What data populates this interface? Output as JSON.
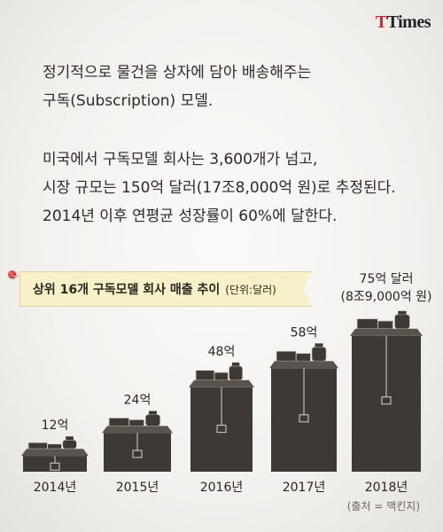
{
  "logo": {
    "t1": "T",
    "t2": "Times"
  },
  "intro": {
    "line1": "정기적으로 물건을 상자에 담아 배송해주는",
    "line2": "구독(Subscription) 모델."
  },
  "body_text": {
    "line1": "미국에서 구독모델 회사는 3,600개가 넘고,",
    "line2": "시장 규모는 150억 달러(17조8,000억 원)로 추정된다.",
    "line3": "2014년 이후 연평균 성장률이 60%에 달한다."
  },
  "banner": {
    "title": "상위 16개 구독모델 회사 매출 추이",
    "unit": "(단위:달러)"
  },
  "source": "(출처 = 맥킨지)",
  "colors": {
    "box_front": "#3f3935",
    "box_lid": "#5a534e",
    "box_line": "#d8d2cc",
    "label": "#2a2624",
    "brand_red": "#d7262e"
  },
  "chart_data": {
    "type": "bar",
    "title": "상위 16개 구독모델 회사 매출 추이",
    "unit": "(단위:달러)",
    "categories": [
      "2014년",
      "2015년",
      "2016년",
      "2017년",
      "2018년"
    ],
    "values": [
      12,
      24,
      48,
      58,
      75
    ],
    "value_labels": [
      "12억",
      "24억",
      "48억",
      "58억",
      "75억 달러"
    ],
    "sub_label_last": "(8조9,000억 원)",
    "ylim": [
      0,
      80
    ],
    "legend": "none",
    "grid": false
  }
}
